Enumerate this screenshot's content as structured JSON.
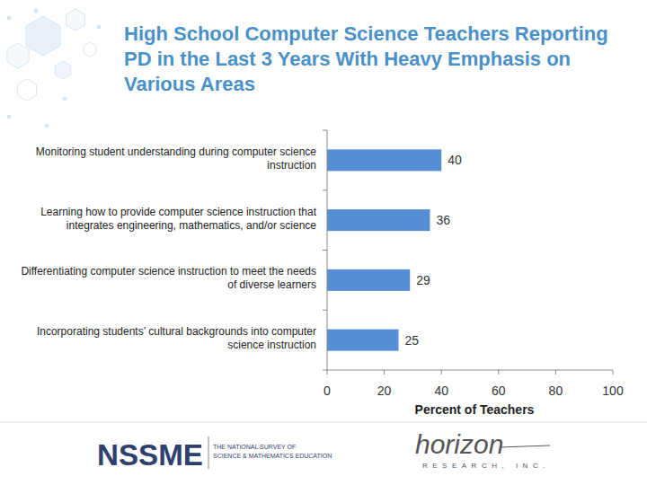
{
  "chart_data": {
    "type": "bar",
    "orientation": "horizontal",
    "title": "High School Computer Science Teachers Reporting PD in the Last 3 Years With Heavy Emphasis on Various Areas",
    "categories": [
      "Monitoring student understanding during computer science instruction",
      "Learning how to provide computer science instruction that integrates engineering, mathematics, and/or science",
      "Differentiating computer science instruction to meet the needs of diverse learners",
      "Incorporating students’ cultural backgrounds into computer science instruction"
    ],
    "values": [
      40,
      36,
      29,
      25
    ],
    "color": "#558ed5",
    "xlim": [
      0,
      100
    ],
    "xticks": [
      0,
      20,
      40,
      60,
      80,
      100
    ],
    "xlabel": "Percent of Teachers",
    "data_labels": true,
    "grid": false,
    "annotations": [
      "NSSME",
      "THE NATIONAL SURVEY OF",
      "SCIENCE & MATHEMATICS EDUCATION",
      "horizon",
      "RESEARCH, INC."
    ]
  }
}
